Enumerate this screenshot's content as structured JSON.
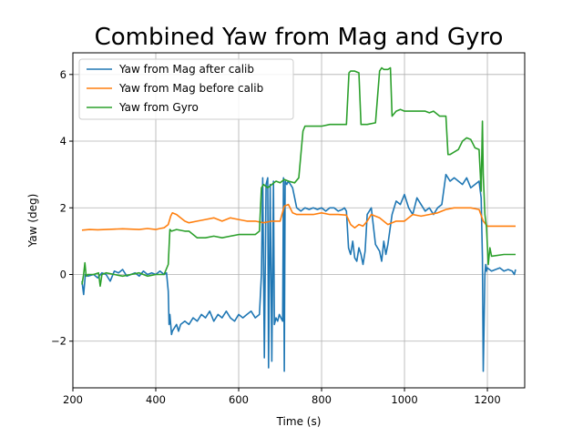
{
  "chart_data": {
    "type": "line",
    "title": "Combined Yaw from Mag and Gyro",
    "xlabel": "Time (s)",
    "ylabel": "Yaw (deg)",
    "xlim": [
      200,
      1290
    ],
    "ylim": [
      -3.4,
      6.65
    ],
    "xticks": [
      200,
      400,
      600,
      800,
      1000,
      1200
    ],
    "yticks": [
      -2,
      0,
      2,
      4,
      6
    ],
    "grid": true,
    "legend_position": "top-left",
    "series": [
      {
        "name": "Yaw from Mag after calib",
        "color": "#1f77b4",
        "x": [
          222,
          226,
          230,
          236,
          250,
          260,
          270,
          280,
          290,
          300,
          310,
          320,
          330,
          340,
          350,
          360,
          370,
          380,
          390,
          400,
          410,
          420,
          426,
          430,
          432,
          434,
          436,
          438,
          440,
          445,
          450,
          455,
          460,
          470,
          480,
          490,
          500,
          510,
          520,
          530,
          540,
          550,
          560,
          570,
          580,
          590,
          600,
          610,
          620,
          630,
          640,
          650,
          655,
          658,
          662,
          666,
          670,
          672,
          676,
          680,
          684,
          686,
          690,
          694,
          698,
          702,
          706,
          708,
          710,
          712,
          716,
          720,
          730,
          740,
          750,
          760,
          770,
          780,
          790,
          800,
          810,
          820,
          830,
          840,
          850,
          855,
          860,
          865,
          870,
          875,
          880,
          885,
          890,
          895,
          900,
          905,
          910,
          915,
          920,
          930,
          940,
          945,
          950,
          955,
          960,
          970,
          980,
          990,
          1000,
          1010,
          1020,
          1030,
          1040,
          1050,
          1060,
          1070,
          1080,
          1090,
          1100,
          1105,
          1110,
          1120,
          1130,
          1140,
          1150,
          1160,
          1170,
          1180,
          1185,
          1188,
          1190,
          1192,
          1194,
          1196,
          1198,
          1200,
          1210,
          1220,
          1230,
          1240,
          1250,
          1260,
          1265,
          1268
        ],
        "y": [
          -0.2,
          -0.6,
          0.0,
          -0.05,
          0.0,
          -0.1,
          0.05,
          0.0,
          -0.2,
          0.1,
          0.05,
          0.15,
          -0.05,
          0.0,
          0.05,
          -0.05,
          0.1,
          0.0,
          0.05,
          0.0,
          0.1,
          0.0,
          0.05,
          -0.5,
          -1.5,
          -1.2,
          -1.5,
          -1.8,
          -1.7,
          -1.6,
          -1.5,
          -1.7,
          -1.5,
          -1.4,
          -1.5,
          -1.3,
          -1.4,
          -1.2,
          -1.3,
          -1.1,
          -1.4,
          -1.2,
          -1.3,
          -1.1,
          -1.3,
          -1.4,
          -1.2,
          -1.3,
          -1.2,
          -1.1,
          -1.3,
          -1.2,
          0.0,
          2.9,
          -2.5,
          2.7,
          2.9,
          -2.8,
          2.7,
          -2.6,
          2.8,
          -1.5,
          -1.3,
          -1.4,
          -1.2,
          -1.3,
          -1.4,
          2.9,
          -2.9,
          2.8,
          2.7,
          2.8,
          2.6,
          2.0,
          1.9,
          2.0,
          1.95,
          2.0,
          1.95,
          2.0,
          1.9,
          2.0,
          2.0,
          1.9,
          1.95,
          2.0,
          1.9,
          0.8,
          0.6,
          1.0,
          0.5,
          0.4,
          0.8,
          0.6,
          0.3,
          0.7,
          1.8,
          1.9,
          2.0,
          0.9,
          0.7,
          0.4,
          1.0,
          0.6,
          0.9,
          1.8,
          2.2,
          2.1,
          2.4,
          2.0,
          1.8,
          2.3,
          2.1,
          1.9,
          2.0,
          1.8,
          2.0,
          2.1,
          3.0,
          2.9,
          2.8,
          2.9,
          2.8,
          2.7,
          2.9,
          2.6,
          2.7,
          2.8,
          2.3,
          0.5,
          -2.9,
          -1.5,
          0.0,
          0.3,
          0.1,
          0.2,
          0.1,
          0.15,
          0.2,
          0.1,
          0.15,
          0.1,
          0.0,
          0.15
        ]
      },
      {
        "name": "Yaw from Mag before calib",
        "color": "#ff7f0e",
        "x": [
          222,
          240,
          260,
          280,
          300,
          320,
          340,
          360,
          380,
          400,
          410,
          420,
          430,
          436,
          440,
          450,
          460,
          470,
          480,
          500,
          520,
          540,
          560,
          580,
          600,
          620,
          640,
          660,
          680,
          700,
          710,
          720,
          730,
          740,
          750,
          760,
          780,
          800,
          820,
          840,
          860,
          870,
          880,
          890,
          900,
          910,
          920,
          940,
          960,
          980,
          1000,
          1020,
          1040,
          1060,
          1080,
          1100,
          1120,
          1140,
          1160,
          1180,
          1190,
          1200,
          1220,
          1240,
          1268
        ],
        "y": [
          1.33,
          1.35,
          1.34,
          1.35,
          1.36,
          1.37,
          1.36,
          1.35,
          1.38,
          1.35,
          1.38,
          1.4,
          1.5,
          1.75,
          1.85,
          1.8,
          1.7,
          1.6,
          1.55,
          1.6,
          1.65,
          1.7,
          1.6,
          1.7,
          1.65,
          1.6,
          1.6,
          1.55,
          1.6,
          1.6,
          2.05,
          2.1,
          1.85,
          1.8,
          1.8,
          1.8,
          1.8,
          1.85,
          1.8,
          1.8,
          1.78,
          1.5,
          1.4,
          1.5,
          1.45,
          1.6,
          1.8,
          1.7,
          1.5,
          1.6,
          1.6,
          1.8,
          1.75,
          1.8,
          1.85,
          1.95,
          2.0,
          2.0,
          2.0,
          1.95,
          1.6,
          1.45,
          1.45,
          1.45,
          1.45
        ]
      },
      {
        "name": "Yaw from Gyro",
        "color": "#2ca02c",
        "x": [
          222,
          226,
          229,
          232,
          236,
          250,
          262,
          266,
          270,
          280,
          300,
          320,
          340,
          360,
          380,
          400,
          420,
          430,
          434,
          438,
          450,
          470,
          480,
          500,
          520,
          540,
          560,
          580,
          600,
          620,
          640,
          650,
          655,
          660,
          670,
          680,
          690,
          700,
          710,
          720,
          735,
          745,
          755,
          760,
          780,
          800,
          820,
          840,
          860,
          866,
          870,
          880,
          890,
          895,
          900,
          905,
          910,
          930,
          940,
          945,
          950,
          960,
          966,
          970,
          980,
          990,
          1000,
          1050,
          1060,
          1070,
          1085,
          1095,
          1100,
          1105,
          1110,
          1130,
          1140,
          1150,
          1160,
          1170,
          1180,
          1185,
          1188,
          1190,
          1194,
          1198,
          1202,
          1206,
          1210,
          1240,
          1268
        ],
        "y": [
          -0.3,
          0.0,
          0.35,
          -0.05,
          0.0,
          0.0,
          0.05,
          -0.35,
          0.0,
          0.05,
          0.0,
          -0.05,
          0.0,
          0.05,
          -0.05,
          0.0,
          0.0,
          0.3,
          1.35,
          1.3,
          1.35,
          1.3,
          1.3,
          1.1,
          1.1,
          1.15,
          1.1,
          1.15,
          1.2,
          1.2,
          1.2,
          1.3,
          2.6,
          2.7,
          2.6,
          2.7,
          2.8,
          2.75,
          2.85,
          2.8,
          2.75,
          2.9,
          4.3,
          4.45,
          4.45,
          4.45,
          4.5,
          4.5,
          4.5,
          6.05,
          6.1,
          6.1,
          6.05,
          4.5,
          4.5,
          4.5,
          4.5,
          4.55,
          6.1,
          6.2,
          6.15,
          6.15,
          6.2,
          4.75,
          4.9,
          4.95,
          4.9,
          4.9,
          4.85,
          4.9,
          4.75,
          4.75,
          4.75,
          3.6,
          3.6,
          3.75,
          4.0,
          4.1,
          4.05,
          3.8,
          3.75,
          2.5,
          4.6,
          3.0,
          1.8,
          1.4,
          0.3,
          0.8,
          0.55,
          0.6,
          0.6
        ]
      }
    ]
  }
}
